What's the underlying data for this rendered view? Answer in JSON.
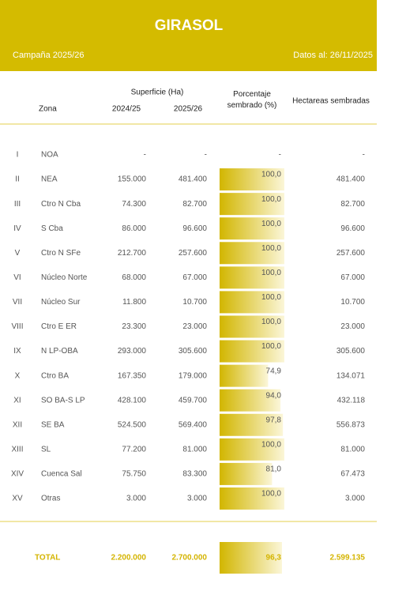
{
  "header": {
    "title": "GIRASOL",
    "campaign": "Campaña 2025/26",
    "date": "Datos al: 26/11/2025"
  },
  "table": {
    "columns": {
      "superficie": "Superficie (Ha)",
      "zona": "Zona",
      "s2425": "2024/25",
      "s2526": "2025/26",
      "pct": "Porcentaje sembrado (%)",
      "ha": "Hectareas sembradas"
    },
    "bar_range": [
      0,
      100
    ],
    "rows": [
      {
        "num": "I",
        "zona": "NOA",
        "s2425": "-",
        "s2526": "-",
        "pct": null,
        "pct_label": "-",
        "ha": "-"
      },
      {
        "num": "II",
        "zona": "NEA",
        "s2425": "155.000",
        "s2526": "481.400",
        "pct": 100.0,
        "pct_label": "100,0",
        "ha": "481.400"
      },
      {
        "num": "III",
        "zona": "Ctro N Cba",
        "s2425": "74.300",
        "s2526": "82.700",
        "pct": 100.0,
        "pct_label": "100,0",
        "ha": "82.700"
      },
      {
        "num": "IV",
        "zona": "S Cba",
        "s2425": "86.000",
        "s2526": "96.600",
        "pct": 100.0,
        "pct_label": "100,0",
        "ha": "96.600"
      },
      {
        "num": "V",
        "zona": "Ctro N SFe",
        "s2425": "212.700",
        "s2526": "257.600",
        "pct": 100.0,
        "pct_label": "100,0",
        "ha": "257.600"
      },
      {
        "num": "VI",
        "zona": "Núcleo Norte",
        "s2425": "68.000",
        "s2526": "67.000",
        "pct": 100.0,
        "pct_label": "100,0",
        "ha": "67.000"
      },
      {
        "num": "VII",
        "zona": "Núcleo Sur",
        "s2425": "11.800",
        "s2526": "10.700",
        "pct": 100.0,
        "pct_label": "100,0",
        "ha": "10.700"
      },
      {
        "num": "VIII",
        "zona": "Ctro E ER",
        "s2425": "23.300",
        "s2526": "23.000",
        "pct": 100.0,
        "pct_label": "100,0",
        "ha": "23.000"
      },
      {
        "num": "IX",
        "zona": "N LP-OBA",
        "s2425": "293.000",
        "s2526": "305.600",
        "pct": 100.0,
        "pct_label": "100,0",
        "ha": "305.600"
      },
      {
        "num": "X",
        "zona": "Ctro BA",
        "s2425": "167.350",
        "s2526": "179.000",
        "pct": 74.9,
        "pct_label": "74,9",
        "ha": "134.071"
      },
      {
        "num": "XI",
        "zona": "SO BA-S LP",
        "s2425": "428.100",
        "s2526": "459.700",
        "pct": 94.0,
        "pct_label": "94,0",
        "ha": "432.118"
      },
      {
        "num": "XII",
        "zona": "SE BA",
        "s2425": "524.500",
        "s2526": "569.400",
        "pct": 97.8,
        "pct_label": "97,8",
        "ha": "556.873"
      },
      {
        "num": "XIII",
        "zona": "SL",
        "s2425": "77.200",
        "s2526": "81.000",
        "pct": 100.0,
        "pct_label": "100,0",
        "ha": "81.000"
      },
      {
        "num": "XIV",
        "zona": "Cuenca Sal",
        "s2425": "75.750",
        "s2526": "83.300",
        "pct": 81.0,
        "pct_label": "81,0",
        "ha": "67.473"
      },
      {
        "num": "XV",
        "zona": "Otras",
        "s2425": "3.000",
        "s2526": "3.000",
        "pct": 100.0,
        "pct_label": "100,0",
        "ha": "3.000"
      }
    ],
    "total": {
      "zona": "TOTAL",
      "s2425": "2.200.000",
      "s2526": "2.700.000",
      "pct": 96.3,
      "pct_label": "96,3",
      "ha": "2.599.135"
    }
  }
}
